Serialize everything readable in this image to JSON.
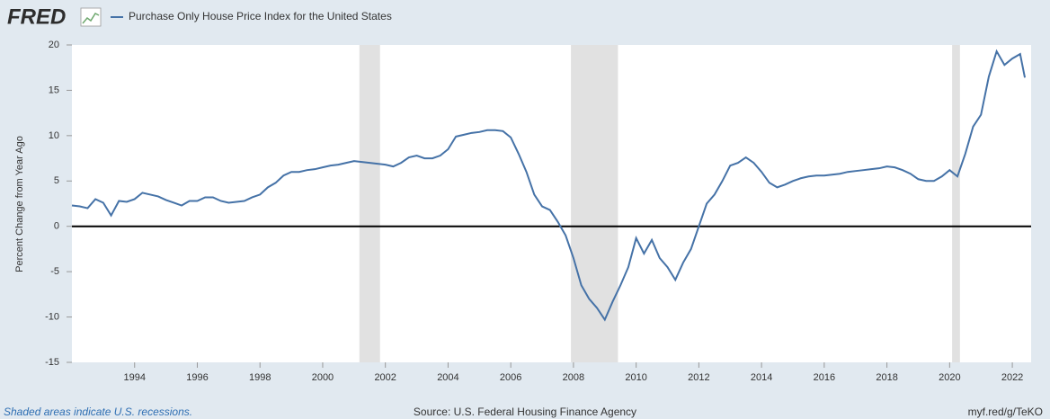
{
  "header": {
    "logo": "FRED"
  },
  "chart_data": {
    "type": "line",
    "y_label": "Percent Change from Year Ago",
    "x": [
      1992,
      1992.25,
      1992.5,
      1992.75,
      1993,
      1993.25,
      1993.5,
      1993.75,
      1994,
      1994.25,
      1994.5,
      1994.75,
      1995,
      1995.25,
      1995.5,
      1995.75,
      1996,
      1996.25,
      1996.5,
      1996.75,
      1997,
      1997.25,
      1997.5,
      1997.75,
      1998,
      1998.25,
      1998.5,
      1998.75,
      1999,
      1999.25,
      1999.5,
      1999.75,
      2000,
      2000.25,
      2000.5,
      2000.75,
      2001,
      2001.25,
      2001.5,
      2001.75,
      2002,
      2002.25,
      2002.5,
      2002.75,
      2003,
      2003.25,
      2003.5,
      2003.75,
      2004,
      2004.25,
      2004.5,
      2004.75,
      2005,
      2005.25,
      2005.5,
      2005.75,
      2006,
      2006.25,
      2006.5,
      2006.75,
      2007,
      2007.25,
      2007.5,
      2007.75,
      2008,
      2008.25,
      2008.5,
      2008.75,
      2009,
      2009.25,
      2009.5,
      2009.75,
      2010,
      2010.25,
      2010.5,
      2010.75,
      2011,
      2011.25,
      2011.5,
      2011.75,
      2012,
      2012.25,
      2012.5,
      2012.75,
      2013,
      2013.25,
      2013.5,
      2013.75,
      2014,
      2014.25,
      2014.5,
      2014.75,
      2015,
      2015.25,
      2015.5,
      2015.75,
      2016,
      2016.25,
      2016.5,
      2016.75,
      2017,
      2017.25,
      2017.5,
      2017.75,
      2018,
      2018.25,
      2018.5,
      2018.75,
      2019,
      2019.25,
      2019.5,
      2019.75,
      2020,
      2020.25,
      2020.5,
      2020.75,
      2021,
      2021.25,
      2021.5,
      2021.75,
      2022,
      2022.25,
      2022.4
    ],
    "series": [
      {
        "name": "Purchase Only House Price Index for the United States",
        "color": "#4572a7",
        "values": [
          2.3,
          2.2,
          2.0,
          3.0,
          2.6,
          1.2,
          2.8,
          2.7,
          3.0,
          3.7,
          3.5,
          3.3,
          2.9,
          2.6,
          2.3,
          2.8,
          2.8,
          3.2,
          3.2,
          2.8,
          2.6,
          2.7,
          2.8,
          3.2,
          3.5,
          4.3,
          4.8,
          5.6,
          6.0,
          6.0,
          6.2,
          6.3,
          6.5,
          6.7,
          6.8,
          7.0,
          7.2,
          7.1,
          7.0,
          6.9,
          6.8,
          6.6,
          7.0,
          7.6,
          7.8,
          7.5,
          7.5,
          7.8,
          8.5,
          9.9,
          10.1,
          10.3,
          10.4,
          10.6,
          10.6,
          10.5,
          9.8,
          8.0,
          6.0,
          3.5,
          2.2,
          1.8,
          0.5,
          -1.0,
          -3.5,
          -6.5,
          -8.0,
          -9.0,
          -10.3,
          -8.3,
          -6.5,
          -4.5,
          -1.3,
          -3.0,
          -1.5,
          -3.5,
          -4.5,
          -5.9,
          -4.0,
          -2.5,
          0.0,
          2.5,
          3.5,
          5.0,
          6.7,
          7.0,
          7.6,
          7.0,
          6.0,
          4.8,
          4.3,
          4.6,
          5.0,
          5.3,
          5.5,
          5.6,
          5.6,
          5.7,
          5.8,
          6.0,
          6.1,
          6.2,
          6.3,
          6.4,
          6.6,
          6.5,
          6.2,
          5.8,
          5.2,
          5.0,
          5.0,
          5.5,
          6.2,
          5.5,
          8.0,
          11.0,
          12.3,
          16.5,
          19.3,
          17.8,
          18.5,
          19.0,
          16.4
        ]
      }
    ],
    "recessions": [
      [
        2001.17,
        2001.83
      ],
      [
        2007.92,
        2009.42
      ],
      [
        2020.08,
        2020.33
      ]
    ],
    "xlim": [
      1992,
      2022.6
    ],
    "xticks": [
      1994,
      1996,
      1998,
      2000,
      2002,
      2004,
      2006,
      2008,
      2010,
      2012,
      2014,
      2016,
      2018,
      2020,
      2022
    ],
    "ylim": [
      -15,
      20
    ],
    "yticks": [
      -15,
      -10,
      -5,
      0,
      5,
      10,
      15,
      20
    ],
    "zero_line": 0
  },
  "footer": {
    "note": "Shaded areas indicate U.S. recessions.",
    "source": "Source: U.S. Federal Housing Finance Agency",
    "link": "myf.red/g/TeKO"
  }
}
